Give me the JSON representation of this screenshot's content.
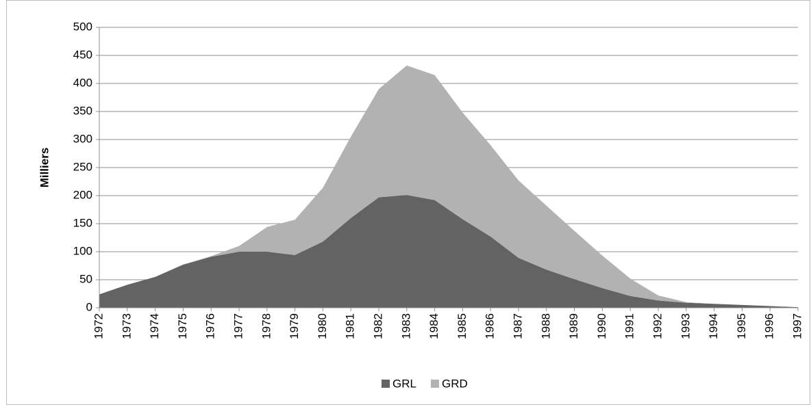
{
  "chart_data": {
    "type": "stacked_area",
    "y_label": "Milliers",
    "categories": [
      "1972",
      "1973",
      "1974",
      "1975",
      "1976",
      "1977",
      "1978",
      "1979",
      "1980",
      "1981",
      "1982",
      "1983",
      "1984",
      "1985",
      "1986",
      "1987",
      "1988",
      "1989",
      "1990",
      "1991",
      "1992",
      "1993",
      "1994",
      "1995",
      "1996",
      "1997"
    ],
    "series": [
      {
        "name": "GRL",
        "color": "#636363",
        "values": [
          24,
          41,
          55,
          77,
          91,
          100,
          100,
          94,
          118,
          160,
          197,
          201,
          192,
          158,
          127,
          89,
          68,
          51,
          35,
          21,
          13,
          9,
          7,
          5,
          3,
          1
        ]
      },
      {
        "name": "GRD",
        "color": "#b2b2b2",
        "values": [
          0,
          0,
          0,
          0,
          1,
          10,
          44,
          63,
          96,
          145,
          193,
          231,
          223,
          190,
          163,
          138,
          114,
          86,
          58,
          31,
          9,
          1,
          0,
          0,
          0,
          0
        ]
      }
    ],
    "ylim": [
      0,
      500
    ],
    "yticks": [
      0,
      50,
      100,
      150,
      200,
      250,
      300,
      350,
      400,
      450,
      500
    ],
    "grid": true,
    "legend": "bottom"
  }
}
